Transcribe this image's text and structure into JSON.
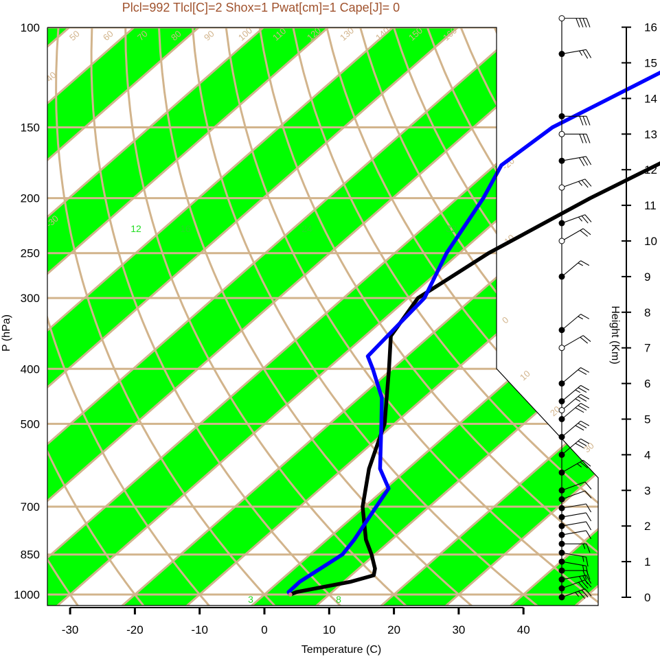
{
  "chart_data": {
    "type": "line",
    "title": "Plcl=992 Tlcl[C]=2 Shox=1 Pwat[cm]=1 Cape[J]= 0",
    "xlabel": "Temperature (C)",
    "ylabel": "P (hPa)",
    "y2label": "Height (Km)",
    "xlim": [
      -34,
      36
    ],
    "ylim": [
      1050,
      100
    ],
    "x_ticks": [
      "-30",
      "-20",
      "-10",
      "0",
      "10",
      "20",
      "30",
      "40"
    ],
    "pressure_ticks": [
      "100",
      "150",
      "200",
      "250",
      "300",
      "400",
      "500",
      "700",
      "850",
      "1000"
    ],
    "height_ticks": [
      "0",
      "1",
      "2",
      "3",
      "4",
      "5",
      "6",
      "7",
      "8",
      "9",
      "10",
      "11",
      "12",
      "13",
      "14",
      "15",
      "16"
    ],
    "isotherm_labels": [
      "-30",
      "-20",
      "-10",
      "0",
      "10",
      "20",
      "30",
      "40",
      "50",
      "60",
      "70",
      "80",
      "90",
      "100",
      "110",
      "120",
      "130",
      "140",
      "150",
      "160"
    ],
    "mixing_ratio_labels": [
      "3",
      "8",
      "12",
      "16",
      "24",
      "32"
    ],
    "colors": {
      "temperature": "#000000",
      "dewpoint": "#0000ff",
      "bands": "#00ff00",
      "isobars": "#d2b48c",
      "mixing_ratio": "#22dd22",
      "title": "#a0522d"
    },
    "series": [
      {
        "values": [
          [
            1000,
            4
          ],
          [
            990,
            4.5
          ],
          [
            950,
            11
          ],
          [
            925,
            13.5
          ],
          [
            900,
            12.5
          ],
          [
            850,
            9.5
          ],
          [
            800,
            6
          ],
          [
            700,
            -0.3
          ],
          [
            600,
            -6
          ],
          [
            500,
            -11.5
          ],
          [
            400,
            -20.5
          ],
          [
            350,
            -26
          ],
          [
            300,
            -28.5
          ],
          [
            250,
            -25.5
          ],
          [
            200,
            -19.5
          ],
          [
            150,
            -10
          ],
          [
            100,
            -0.5
          ]
        ]
      },
      {
        "values": [
          [
            1000,
            4
          ],
          [
            990,
            3.3
          ],
          [
            950,
            3.2
          ],
          [
            850,
            5
          ],
          [
            800,
            4.2
          ],
          [
            700,
            1.8
          ],
          [
            650,
            0.5
          ],
          [
            600,
            -4.3
          ],
          [
            500,
            -12
          ],
          [
            450,
            -16.5
          ],
          [
            400,
            -23
          ],
          [
            380,
            -26
          ],
          [
            300,
            -27.5
          ],
          [
            250,
            -32
          ],
          [
            200,
            -36
          ],
          [
            175,
            -39
          ],
          [
            150,
            -37.8
          ],
          [
            100,
            -25
          ]
        ]
      }
    ],
    "wind_profile": [
      {
        "h": 0.0,
        "dir": 250,
        "spd": 35,
        "filled": true
      },
      {
        "h": 0.25,
        "dir": 250,
        "spd": 30,
        "filled": true
      },
      {
        "h": 0.5,
        "dir": 260,
        "spd": 25,
        "filled": true
      },
      {
        "h": 0.75,
        "dir": 270,
        "spd": 20,
        "filled": true
      },
      {
        "h": 1.0,
        "dir": 280,
        "spd": 15,
        "filled": true
      },
      {
        "h": 1.25,
        "dir": 280,
        "spd": 15,
        "filled": true
      },
      {
        "h": 1.5,
        "dir": 270,
        "spd": 15,
        "filled": true
      },
      {
        "h": 1.75,
        "dir": 260,
        "spd": 10,
        "filled": true
      },
      {
        "h": 2.0,
        "dir": 260,
        "spd": 10,
        "filled": true
      },
      {
        "h": 2.25,
        "dir": 260,
        "spd": 10,
        "filled": true
      },
      {
        "h": 2.5,
        "dir": 260,
        "spd": 10,
        "filled": true
      },
      {
        "h": 2.75,
        "dir": 250,
        "spd": 10,
        "filled": true
      },
      {
        "h": 3.0,
        "dir": 250,
        "spd": 10,
        "filled": true
      },
      {
        "h": 3.5,
        "dir": 240,
        "spd": 25,
        "filled": true
      },
      {
        "h": 4.0,
        "dir": 230,
        "spd": 30,
        "filled": true
      },
      {
        "h": 4.5,
        "dir": 230,
        "spd": 30,
        "filled": true
      },
      {
        "h": 5.0,
        "dir": 230,
        "spd": 30,
        "filled": true
      },
      {
        "h": 5.25,
        "dir": 230,
        "spd": 25,
        "filled": false
      },
      {
        "h": 5.5,
        "dir": 230,
        "spd": 25,
        "filled": true
      },
      {
        "h": 6.0,
        "dir": 230,
        "spd": 20,
        "filled": true
      },
      {
        "h": 7.0,
        "dir": 240,
        "spd": 20,
        "filled": false
      },
      {
        "h": 7.5,
        "dir": 230,
        "spd": 15,
        "filled": true
      },
      {
        "h": 9.0,
        "dir": 230,
        "spd": 15,
        "filled": true
      },
      {
        "h": 10.0,
        "dir": 240,
        "spd": 20,
        "filled": false
      },
      {
        "h": 10.5,
        "dir": 250,
        "spd": 25,
        "filled": true
      },
      {
        "h": 11.5,
        "dir": 250,
        "spd": 25,
        "filled": false
      },
      {
        "h": 12.25,
        "dir": 260,
        "spd": 30,
        "filled": true
      },
      {
        "h": 13.0,
        "dir": 270,
        "spd": 30,
        "filled": false
      },
      {
        "h": 13.5,
        "dir": 270,
        "spd": 30,
        "filled": true
      },
      {
        "h": 15.25,
        "dir": 260,
        "spd": 25,
        "filled": true
      },
      {
        "h": 16.25,
        "dir": 270,
        "spd": 40,
        "filled": false
      }
    ]
  }
}
